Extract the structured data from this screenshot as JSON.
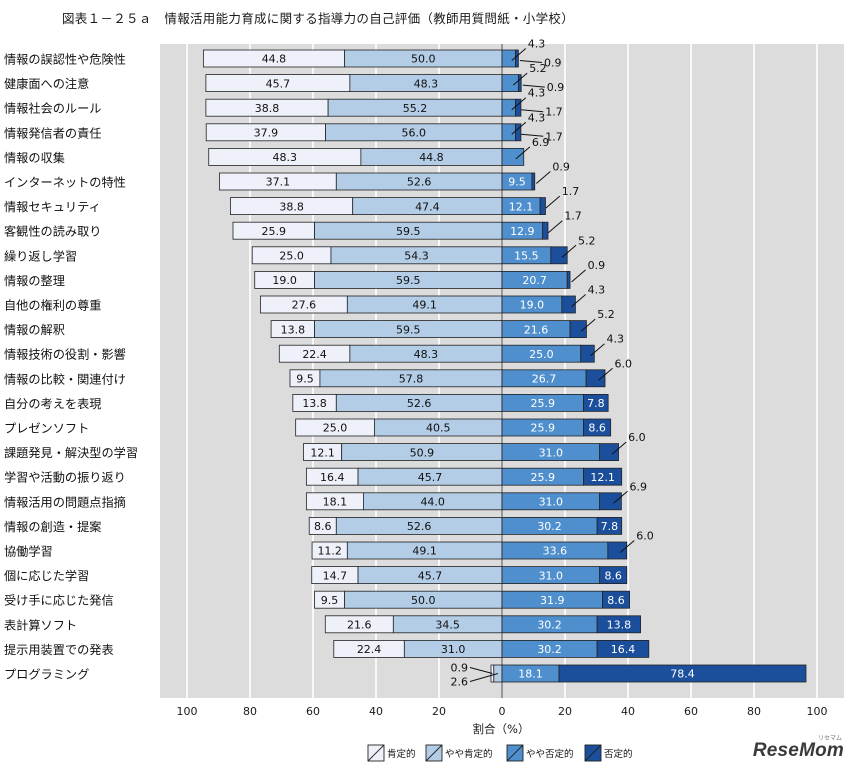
{
  "title": "図表１－２５ａ　情報活用能力育成に関する指導力の自己評価（教師用質問紙・小学校）",
  "brand": "ReseMom",
  "brand_sub": "リセマム",
  "colors": {
    "positive": "#eef1fa",
    "somewhat_positive": "#b3cde6",
    "somewhat_negative": "#4f8fcd",
    "negative": "#1c4f9b",
    "plot_bg": "#dcdcdc",
    "grid": "#ffffff"
  },
  "chart_data": {
    "type": "bar",
    "orientation": "horizontal",
    "stacking": "diverging",
    "xlabel": "割合（%）",
    "xlim": [
      -100,
      100
    ],
    "xticks": [
      {
        "value": -100,
        "label": "100"
      },
      {
        "value": -80,
        "label": "80"
      },
      {
        "value": -60,
        "label": "60"
      },
      {
        "value": -40,
        "label": "40"
      },
      {
        "value": -20,
        "label": "20"
      },
      {
        "value": 0,
        "label": "0"
      },
      {
        "value": 20,
        "label": "20"
      },
      {
        "value": 40,
        "label": "40"
      },
      {
        "value": 60,
        "label": "60"
      },
      {
        "value": 80,
        "label": "80"
      },
      {
        "value": 100,
        "label": "100"
      }
    ],
    "legend": {
      "position": "bottom",
      "items": [
        "肯定的",
        "やや肯定的",
        "やや否定的",
        "否定的"
      ]
    },
    "categories": [
      "情報の誤認性や危険性",
      "健康面への注意",
      "情報社会のルール",
      "情報発信者の責任",
      "情報の収集",
      "インターネットの特性",
      "情報セキュリティ",
      "客観性の読み取り",
      "繰り返し学習",
      "情報の整理",
      "自他の権利の尊重",
      "情報の解釈",
      "情報技術の役割・影響",
      "情報の比較・関連付け",
      "自分の考えを表現",
      "プレゼンソフト",
      "課題発見・解決型の学習",
      "学習や活動の振り返り",
      "情報活用の問題点指摘",
      "情報の創造・提案",
      "協働学習",
      "個に応じた学習",
      "受け手に応じた発信",
      "表計算ソフト",
      "提示用装置での発表",
      "プログラミング"
    ],
    "series": [
      {
        "name": "肯定的",
        "side": "left",
        "values": [
          44.8,
          45.7,
          38.8,
          37.9,
          48.3,
          37.1,
          38.8,
          25.9,
          25.0,
          19.0,
          27.6,
          13.8,
          22.4,
          9.5,
          13.8,
          25.0,
          12.1,
          16.4,
          18.1,
          8.6,
          11.2,
          14.7,
          9.5,
          21.6,
          22.4,
          0.9
        ]
      },
      {
        "name": "やや肯定的",
        "side": "left",
        "values": [
          50.0,
          48.3,
          55.2,
          56.0,
          44.8,
          52.6,
          47.4,
          59.5,
          54.3,
          59.5,
          49.1,
          59.5,
          48.3,
          57.8,
          52.6,
          40.5,
          50.9,
          45.7,
          44.0,
          52.6,
          49.1,
          45.7,
          50.0,
          34.5,
          31.0,
          2.6
        ]
      },
      {
        "name": "やや否定的",
        "side": "right",
        "values": [
          4.3,
          5.2,
          4.3,
          4.3,
          6.9,
          9.5,
          12.1,
          12.9,
          15.5,
          20.7,
          19.0,
          21.6,
          25.0,
          26.7,
          25.9,
          25.9,
          31.0,
          25.9,
          31.0,
          30.2,
          33.6,
          31.0,
          31.9,
          30.2,
          30.2,
          18.1
        ]
      },
      {
        "name": "否定的",
        "side": "right",
        "values": [
          0.9,
          0.9,
          1.7,
          1.7,
          0.0,
          0.9,
          1.7,
          1.7,
          5.2,
          0.9,
          4.3,
          5.2,
          4.3,
          6.0,
          7.8,
          8.6,
          6.0,
          12.1,
          6.9,
          7.8,
          6.0,
          8.6,
          8.6,
          13.8,
          16.4,
          78.4
        ]
      }
    ],
    "labels": [
      {
        "row": 0,
        "series": 0,
        "text": "44.8",
        "callout": false
      },
      {
        "row": 0,
        "series": 1,
        "text": "50.0",
        "callout": false
      },
      {
        "row": 0,
        "series": 2,
        "text": "4.3",
        "callout": true
      },
      {
        "row": 0,
        "series": 3,
        "text": "0.9",
        "callout": true
      },
      {
        "row": 1,
        "series": 0,
        "text": "45.7",
        "callout": false
      },
      {
        "row": 1,
        "series": 1,
        "text": "48.3",
        "callout": false
      },
      {
        "row": 1,
        "series": 2,
        "text": "5.2",
        "callout": true
      },
      {
        "row": 1,
        "series": 3,
        "text": "0.9",
        "callout": true
      },
      {
        "row": 2,
        "series": 0,
        "text": "38.8",
        "callout": false
      },
      {
        "row": 2,
        "series": 1,
        "text": "55.2",
        "callout": false
      },
      {
        "row": 2,
        "series": 2,
        "text": "4.3",
        "callout": true
      },
      {
        "row": 2,
        "series": 3,
        "text": "1.7",
        "callout": true
      },
      {
        "row": 3,
        "series": 0,
        "text": "37.9",
        "callout": false
      },
      {
        "row": 3,
        "series": 1,
        "text": "56.0",
        "callout": false
      },
      {
        "row": 3,
        "series": 2,
        "text": "4.3",
        "callout": true
      },
      {
        "row": 3,
        "series": 3,
        "text": "1.7",
        "callout": true
      },
      {
        "row": 4,
        "series": 0,
        "text": "48.3",
        "callout": false
      },
      {
        "row": 4,
        "series": 1,
        "text": "44.8",
        "callout": false
      },
      {
        "row": 4,
        "series": 2,
        "text": "6.9",
        "callout": true
      },
      {
        "row": 5,
        "series": 0,
        "text": "37.1",
        "callout": false
      },
      {
        "row": 5,
        "series": 1,
        "text": "52.6",
        "callout": false
      },
      {
        "row": 5,
        "series": 2,
        "text": "9.5",
        "callout": false
      },
      {
        "row": 5,
        "series": 3,
        "text": "0.9",
        "callout": true
      },
      {
        "row": 6,
        "series": 0,
        "text": "38.8",
        "callout": false
      },
      {
        "row": 6,
        "series": 1,
        "text": "47.4",
        "callout": false
      },
      {
        "row": 6,
        "series": 2,
        "text": "12.1",
        "callout": false
      },
      {
        "row": 6,
        "series": 3,
        "text": "1.7",
        "callout": true
      },
      {
        "row": 7,
        "series": 0,
        "text": "25.9",
        "callout": false
      },
      {
        "row": 7,
        "series": 1,
        "text": "59.5",
        "callout": false
      },
      {
        "row": 7,
        "series": 2,
        "text": "12.9",
        "callout": false
      },
      {
        "row": 7,
        "series": 3,
        "text": "1.7",
        "callout": true
      },
      {
        "row": 8,
        "series": 0,
        "text": "25.0",
        "callout": false
      },
      {
        "row": 8,
        "series": 1,
        "text": "54.3",
        "callout": false
      },
      {
        "row": 8,
        "series": 2,
        "text": "15.5",
        "callout": false
      },
      {
        "row": 8,
        "series": 3,
        "text": "5.2",
        "callout": true
      },
      {
        "row": 9,
        "series": 0,
        "text": "19.0",
        "callout": false
      },
      {
        "row": 9,
        "series": 1,
        "text": "59.5",
        "callout": false
      },
      {
        "row": 9,
        "series": 2,
        "text": "20.7",
        "callout": false
      },
      {
        "row": 9,
        "series": 3,
        "text": "0.9",
        "callout": true
      },
      {
        "row": 10,
        "series": 0,
        "text": "27.6",
        "callout": false
      },
      {
        "row": 10,
        "series": 1,
        "text": "49.1",
        "callout": false
      },
      {
        "row": 10,
        "series": 2,
        "text": "19.0",
        "callout": false
      },
      {
        "row": 10,
        "series": 3,
        "text": "4.3",
        "callout": true
      },
      {
        "row": 11,
        "series": 0,
        "text": "13.8",
        "callout": false
      },
      {
        "row": 11,
        "series": 1,
        "text": "59.5",
        "callout": false
      },
      {
        "row": 11,
        "series": 2,
        "text": "21.6",
        "callout": false
      },
      {
        "row": 11,
        "series": 3,
        "text": "5.2",
        "callout": true
      },
      {
        "row": 12,
        "series": 0,
        "text": "22.4",
        "callout": false
      },
      {
        "row": 12,
        "series": 1,
        "text": "48.3",
        "callout": false
      },
      {
        "row": 12,
        "series": 2,
        "text": "25.0",
        "callout": false
      },
      {
        "row": 12,
        "series": 3,
        "text": "4.3",
        "callout": true
      },
      {
        "row": 13,
        "series": 0,
        "text": "9.5",
        "callout": false
      },
      {
        "row": 13,
        "series": 1,
        "text": "57.8",
        "callout": false
      },
      {
        "row": 13,
        "series": 2,
        "text": "26.7",
        "callout": false
      },
      {
        "row": 13,
        "series": 3,
        "text": "6.0",
        "callout": true
      },
      {
        "row": 14,
        "series": 0,
        "text": "13.8",
        "callout": false
      },
      {
        "row": 14,
        "series": 1,
        "text": "52.6",
        "callout": false
      },
      {
        "row": 14,
        "series": 2,
        "text": "25.9",
        "callout": false
      },
      {
        "row": 14,
        "series": 3,
        "text": "7.8",
        "callout": false
      },
      {
        "row": 15,
        "series": 0,
        "text": "25.0",
        "callout": false
      },
      {
        "row": 15,
        "series": 1,
        "text": "40.5",
        "callout": false
      },
      {
        "row": 15,
        "series": 2,
        "text": "25.9",
        "callout": false
      },
      {
        "row": 15,
        "series": 3,
        "text": "8.6",
        "callout": false
      },
      {
        "row": 16,
        "series": 0,
        "text": "12.1",
        "callout": false
      },
      {
        "row": 16,
        "series": 1,
        "text": "50.9",
        "callout": false
      },
      {
        "row": 16,
        "series": 2,
        "text": "31.0",
        "callout": false
      },
      {
        "row": 16,
        "series": 3,
        "text": "6.0",
        "callout": true
      },
      {
        "row": 17,
        "series": 0,
        "text": "16.4",
        "callout": false
      },
      {
        "row": 17,
        "series": 1,
        "text": "45.7",
        "callout": false
      },
      {
        "row": 17,
        "series": 2,
        "text": "25.9",
        "callout": false
      },
      {
        "row": 17,
        "series": 3,
        "text": "12.1",
        "callout": false
      },
      {
        "row": 18,
        "series": 0,
        "text": "18.1",
        "callout": false
      },
      {
        "row": 18,
        "series": 1,
        "text": "44.0",
        "callout": false
      },
      {
        "row": 18,
        "series": 2,
        "text": "31.0",
        "callout": false
      },
      {
        "row": 18,
        "series": 3,
        "text": "6.9",
        "callout": true
      },
      {
        "row": 19,
        "series": 0,
        "text": "8.6",
        "callout": false
      },
      {
        "row": 19,
        "series": 1,
        "text": "52.6",
        "callout": false
      },
      {
        "row": 19,
        "series": 2,
        "text": "30.2",
        "callout": false
      },
      {
        "row": 19,
        "series": 3,
        "text": "7.8",
        "callout": false
      },
      {
        "row": 20,
        "series": 0,
        "text": "11.2",
        "callout": false
      },
      {
        "row": 20,
        "series": 1,
        "text": "49.1",
        "callout": false
      },
      {
        "row": 20,
        "series": 2,
        "text": "33.6",
        "callout": false
      },
      {
        "row": 20,
        "series": 3,
        "text": "6.0",
        "callout": true
      },
      {
        "row": 21,
        "series": 0,
        "text": "14.7",
        "callout": false
      },
      {
        "row": 21,
        "series": 1,
        "text": "45.7",
        "callout": false
      },
      {
        "row": 21,
        "series": 2,
        "text": "31.0",
        "callout": false
      },
      {
        "row": 21,
        "series": 3,
        "text": "8.6",
        "callout": false
      },
      {
        "row": 22,
        "series": 0,
        "text": "9.5",
        "callout": false
      },
      {
        "row": 22,
        "series": 1,
        "text": "50.0",
        "callout": false
      },
      {
        "row": 22,
        "series": 2,
        "text": "31.9",
        "callout": false
      },
      {
        "row": 22,
        "series": 3,
        "text": "8.6",
        "callout": false
      },
      {
        "row": 23,
        "series": 0,
        "text": "21.6",
        "callout": false
      },
      {
        "row": 23,
        "series": 1,
        "text": "34.5",
        "callout": false
      },
      {
        "row": 23,
        "series": 2,
        "text": "30.2",
        "callout": false
      },
      {
        "row": 23,
        "series": 3,
        "text": "13.8",
        "callout": false
      },
      {
        "row": 24,
        "series": 0,
        "text": "22.4",
        "callout": false
      },
      {
        "row": 24,
        "series": 1,
        "text": "31.0",
        "callout": false
      },
      {
        "row": 24,
        "series": 2,
        "text": "30.2",
        "callout": false
      },
      {
        "row": 24,
        "series": 3,
        "text": "16.4",
        "callout": false
      },
      {
        "row": 25,
        "series": 0,
        "text": "0.9",
        "callout": true
      },
      {
        "row": 25,
        "series": 1,
        "text": "2.6",
        "callout": true
      },
      {
        "row": 25,
        "series": 2,
        "text": "18.1",
        "callout": false
      },
      {
        "row": 25,
        "series": 3,
        "text": "78.4",
        "callout": false
      }
    ]
  }
}
